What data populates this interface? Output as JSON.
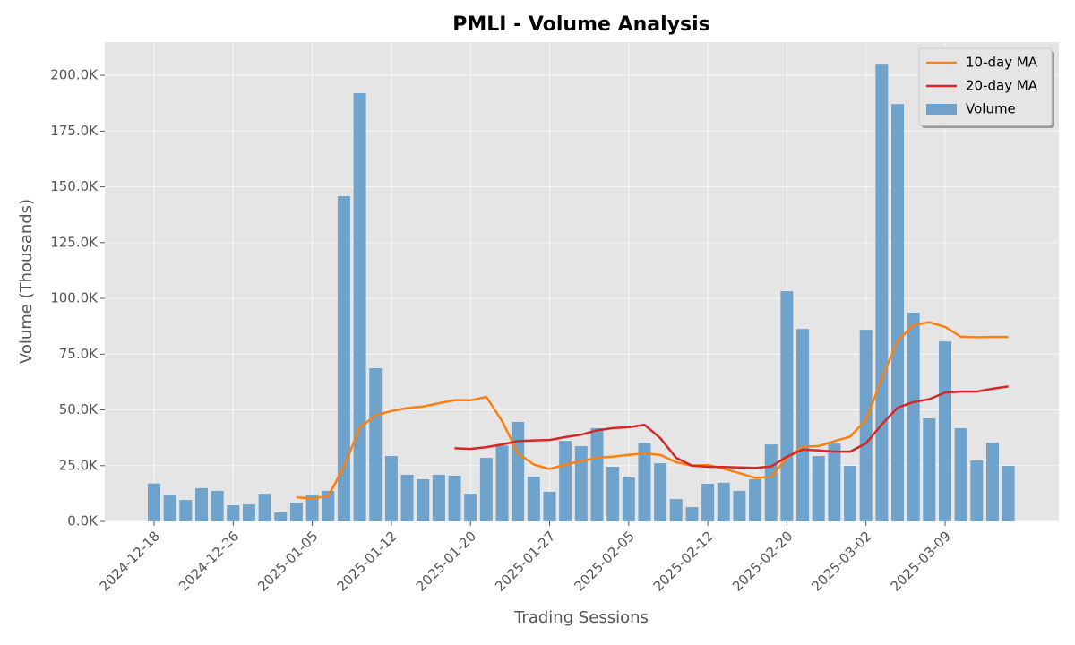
{
  "chart_data": {
    "type": "bar",
    "title": "PMLI - Volume Analysis",
    "x_label": "Trading Sessions",
    "y_label": "Volume (Thousands)",
    "categories": [
      "2024-12-18",
      null,
      null,
      null,
      null,
      "2024-12-26",
      null,
      null,
      null,
      null,
      "2025-01-05",
      null,
      null,
      null,
      null,
      "2025-01-12",
      null,
      null,
      null,
      null,
      "2025-01-20",
      null,
      null,
      null,
      null,
      "2025-01-27",
      null,
      null,
      null,
      null,
      "2025-02-05",
      null,
      null,
      null,
      null,
      "2025-02-12",
      null,
      null,
      null,
      null,
      "2025-02-20",
      null,
      null,
      null,
      null,
      "2025-03-02",
      null,
      null,
      null,
      null,
      "2025-03-09",
      null,
      null,
      null,
      null
    ],
    "series": [
      {
        "name": "Volume",
        "type": "bar",
        "color": "#6fa3cb",
        "values": [
          17000,
          12000,
          9600,
          14900,
          13700,
          7200,
          7600,
          12400,
          4000,
          8400,
          12000,
          13700,
          145800,
          192000,
          68700,
          29300,
          20900,
          18900,
          20900,
          20500,
          12400,
          28500,
          34000,
          44600,
          20000,
          13300,
          36100,
          33700,
          41800,
          24500,
          19700,
          35300,
          26100,
          10000,
          6400,
          16900,
          17300,
          13700,
          18900,
          34500,
          103200,
          86300,
          29300,
          34900,
          24900,
          85900,
          204800,
          187100,
          93600,
          46200,
          80700,
          41800,
          27300,
          35300,
          24900
        ]
      },
      {
        "name": "10-day MA",
        "type": "line",
        "color": "#ff7f0e",
        "values": [
          null,
          null,
          null,
          null,
          null,
          null,
          null,
          null,
          null,
          10800,
          10300,
          11300,
          24500,
          42000,
          47500,
          49500,
          50800,
          51500,
          53000,
          54400,
          54300,
          55800,
          45000,
          30500,
          25500,
          23500,
          25500,
          27000,
          28600,
          29000,
          29800,
          30500,
          29800,
          26500,
          25000,
          25300,
          23600,
          21600,
          19500,
          20000,
          28500,
          33500,
          33800,
          36000,
          38000,
          45500,
          64000,
          81000,
          88000,
          89300,
          87200,
          82800,
          82600,
          82700,
          82700
        ]
      },
      {
        "name": "20-day MA",
        "type": "line",
        "color": "#d62728",
        "values": [
          null,
          null,
          null,
          null,
          null,
          null,
          null,
          null,
          null,
          null,
          null,
          null,
          null,
          null,
          null,
          null,
          null,
          null,
          null,
          32800,
          32500,
          33300,
          34500,
          36000,
          36300,
          36500,
          37800,
          38900,
          40800,
          41800,
          42200,
          43300,
          37300,
          28500,
          25000,
          24500,
          24400,
          24200,
          24000,
          24600,
          29000,
          32200,
          31800,
          31300,
          31300,
          35000,
          43500,
          51000,
          53500,
          54800,
          57800,
          58200,
          58200,
          59500,
          60500
        ]
      }
    ],
    "legend_order": [
      1,
      2,
      0
    ],
    "ylim": [
      0,
      214900
    ],
    "yticks": [
      {
        "value": 0,
        "label": "0.0K"
      },
      {
        "value": 25000,
        "label": "25.0K"
      },
      {
        "value": 50000,
        "label": "50.0K"
      },
      {
        "value": 75000,
        "label": "75.0K"
      },
      {
        "value": 100000,
        "label": "100.0K"
      },
      {
        "value": 125000,
        "label": "125.0K"
      },
      {
        "value": 150000,
        "label": "150.0K"
      },
      {
        "value": 175000,
        "label": "175.0K"
      },
      {
        "value": 200000,
        "label": "200.0K"
      }
    ],
    "grid": true,
    "legend": "upper right"
  }
}
